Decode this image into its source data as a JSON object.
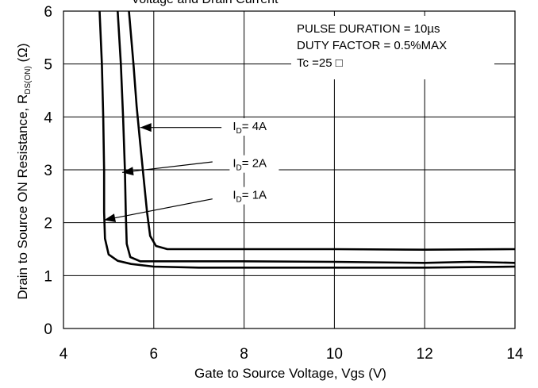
{
  "chart_data": {
    "type": "line",
    "title": "Voltage and Drain Current",
    "xlabel": "Gate to Source Voltage, Vgs (V)",
    "ylabel": {
      "prefix": "Drain to Source ON Resistance, R",
      "subscript": "DS(ON)",
      "suffix": " (Ω)"
    },
    "xlim": [
      4,
      14
    ],
    "ylim": [
      0,
      6
    ],
    "x_ticks": [
      4,
      6,
      8,
      10,
      12,
      14
    ],
    "y_ticks": [
      0,
      1,
      2,
      3,
      4,
      5,
      6
    ],
    "grid": true,
    "conditions": [
      "PULSE    DURATION = 10µs",
      "DUTY    FACTOR = 0.5%MAX",
      "Tc =25 □"
    ],
    "series": [
      {
        "name": "ID= 4A",
        "label_main": "I",
        "label_sub": "D",
        "label_rest": "= 4A",
        "points": [
          [
            5.45,
            6.0
          ],
          [
            5.55,
            5.0
          ],
          [
            5.62,
            4.2
          ],
          [
            5.7,
            3.5
          ],
          [
            5.78,
            2.8
          ],
          [
            5.85,
            2.2
          ],
          [
            5.92,
            1.75
          ],
          [
            6.05,
            1.56
          ],
          [
            6.3,
            1.5
          ],
          [
            7.0,
            1.5
          ],
          [
            8.0,
            1.5
          ],
          [
            10.0,
            1.5
          ],
          [
            12.0,
            1.49
          ],
          [
            14.0,
            1.5
          ]
        ],
        "arrow_from": [
          7.5,
          3.8
        ],
        "arrow_to": [
          5.7,
          3.8
        ]
      },
      {
        "name": "ID= 2A",
        "label_main": "I",
        "label_sub": "D",
        "label_rest": "= 2A",
        "points": [
          [
            5.2,
            6.0
          ],
          [
            5.27,
            5.0
          ],
          [
            5.32,
            4.0
          ],
          [
            5.36,
            3.0
          ],
          [
            5.38,
            2.2
          ],
          [
            5.4,
            1.6
          ],
          [
            5.48,
            1.35
          ],
          [
            5.7,
            1.27
          ],
          [
            6.5,
            1.27
          ],
          [
            8.0,
            1.27
          ],
          [
            10.0,
            1.26
          ],
          [
            12.0,
            1.24
          ],
          [
            13.0,
            1.26
          ],
          [
            14.0,
            1.24
          ]
        ],
        "arrow_from": [
          7.3,
          3.15
        ],
        "arrow_to": [
          5.3,
          2.95
        ]
      },
      {
        "name": "ID= 1A",
        "label_main": "I",
        "label_sub": "D",
        "label_rest": "= 1A",
        "points": [
          [
            4.8,
            6.0
          ],
          [
            4.85,
            5.0
          ],
          [
            4.88,
            4.0
          ],
          [
            4.9,
            3.0
          ],
          [
            4.9,
            2.2
          ],
          [
            4.92,
            1.7
          ],
          [
            5.0,
            1.4
          ],
          [
            5.2,
            1.28
          ],
          [
            5.5,
            1.22
          ],
          [
            6.0,
            1.17
          ],
          [
            7.0,
            1.15
          ],
          [
            8.0,
            1.15
          ],
          [
            10.0,
            1.15
          ],
          [
            12.0,
            1.15
          ],
          [
            14.0,
            1.17
          ]
        ],
        "arrow_from": [
          7.3,
          2.45
        ],
        "arrow_to": [
          4.9,
          2.05
        ]
      }
    ],
    "label_positions_data": [
      [
        7.75,
        3.75
      ],
      [
        7.75,
        3.05
      ],
      [
        7.75,
        2.45
      ]
    ]
  }
}
